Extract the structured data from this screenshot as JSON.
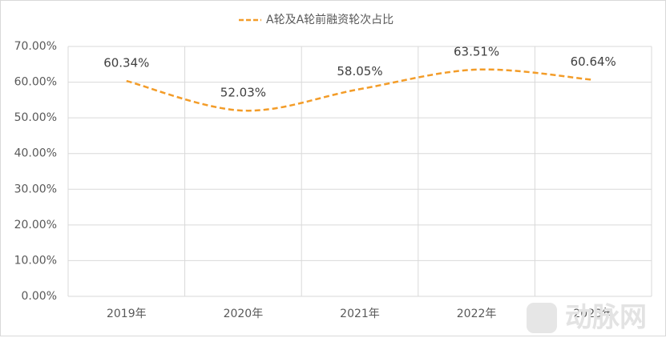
{
  "chart_data": {
    "type": "line",
    "categories": [
      "2019年",
      "2020年",
      "2021年",
      "2022年",
      "2023年"
    ],
    "series": [
      {
        "name": "A轮及A轮前融资轮次占比",
        "color": "#f39c28",
        "values": [
          60.34,
          52.03,
          58.05,
          63.51,
          60.64
        ],
        "value_labels": [
          "60.34%",
          "52.03%",
          "58.05%",
          "63.51%",
          "60.64%"
        ]
      }
    ],
    "ylim": [
      0,
      70
    ],
    "yticks": [
      {
        "value": 0,
        "label": "0.00%"
      },
      {
        "value": 10,
        "label": "10.00%"
      },
      {
        "value": 20,
        "label": "20.00%"
      },
      {
        "value": 30,
        "label": "30.00%"
      },
      {
        "value": 40,
        "label": "40.00%"
      },
      {
        "value": 50,
        "label": "50.00%"
      },
      {
        "value": 60,
        "label": "60.00%"
      },
      {
        "value": 70,
        "label": "70.00%"
      }
    ],
    "grid": true,
    "smooth": true,
    "dashed": true,
    "legend": "top",
    "watermark": "动脉网"
  }
}
